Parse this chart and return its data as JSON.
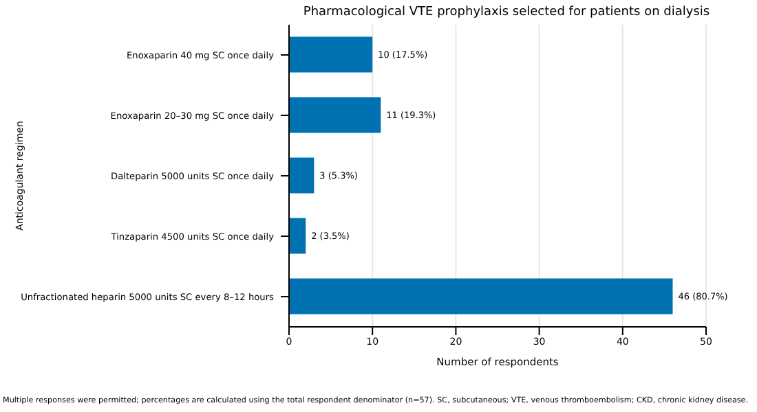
{
  "chart_data": {
    "type": "bar",
    "orientation": "horizontal",
    "title": "Pharmacological VTE prophylaxis selected for patients on dialysis",
    "xlabel": "Number of respondents",
    "ylabel": "Anticoagulant regimen",
    "categories": [
      "Enoxaparin 40 mg SC once daily",
      "Enoxaparin 20–30 mg SC once daily",
      "Dalteparin 5000 units SC once daily",
      "Tinzaparin 4500 units SC once daily",
      "Unfractionated heparin 5000 units SC every 8–12 hours"
    ],
    "values": [
      10,
      11,
      3,
      2,
      46
    ],
    "value_labels": [
      "10 (17.5%)",
      "11 (19.3%)",
      "3 (5.3%)",
      "2 (3.5%)",
      "46 (80.7%)"
    ],
    "color": "#0072b2",
    "xlim": [
      0,
      50
    ],
    "xticks": [
      0,
      10,
      20,
      30,
      40,
      50
    ],
    "grid": "x",
    "annotations": [
      "Multiple responses were permitted; percentages are calculated using the total respondent denominator (n=57). SC, subcutaneous; VTE, venous thromboembolism; CKD, chronic kidney disease."
    ]
  }
}
